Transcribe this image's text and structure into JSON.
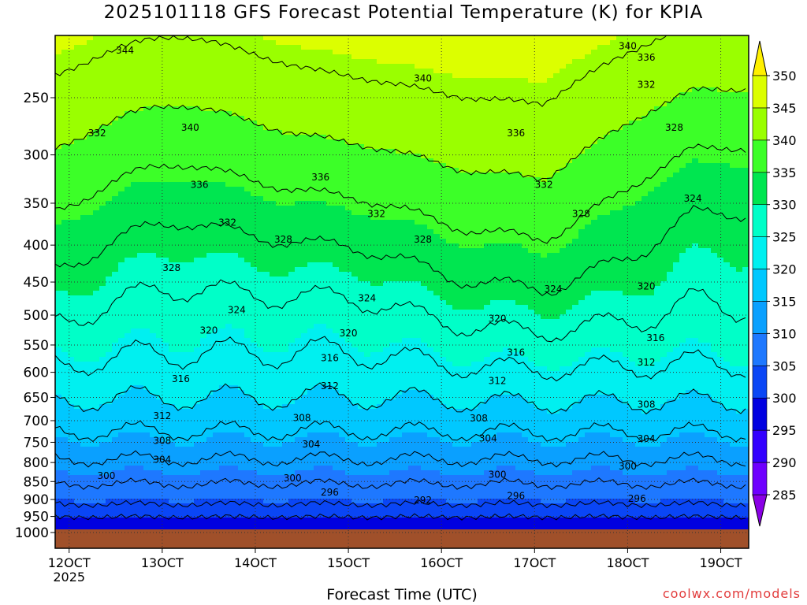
{
  "title": "2025101118 GFS Forecast Potential Temperature (K) for KPIA",
  "credit": "coolwx.com/models",
  "chart_data": {
    "type": "heatmap",
    "title": "2025101118 GFS Forecast Potential Temperature (K) for KPIA",
    "xlabel": "Forecast Time (UTC)",
    "ylabel": "",
    "x_ticks": [
      "12OCT",
      "13OCT",
      "14OCT",
      "15OCT",
      "16OCT",
      "17OCT",
      "18OCT",
      "19OCT"
    ],
    "x_tick_year": "2025",
    "x_range_days": [
      11.85,
      19.3
    ],
    "y_ticks": [
      250,
      300,
      350,
      400,
      450,
      500,
      550,
      600,
      650,
      700,
      750,
      800,
      850,
      900,
      950,
      1000
    ],
    "y_range_hpa": [
      200,
      1000
    ],
    "y_scale": "log-pressure",
    "grid": true,
    "colorbar": {
      "levels": [
        285,
        290,
        295,
        300,
        305,
        310,
        315,
        320,
        325,
        330,
        335,
        340,
        345,
        350
      ],
      "colors": [
        "#8a00e6",
        "#6e00ff",
        "#3300ff",
        "#0000e0",
        "#0a46f5",
        "#1e78ff",
        "#0aa0ff",
        "#00c8ff",
        "#00f0f0",
        "#00ffc8",
        "#00e650",
        "#3cff28",
        "#9aff00",
        "#dcff00",
        "#fff000"
      ],
      "extend": "both"
    },
    "contour_labels": [
      {
        "value": 344,
        "x": 12.6,
        "p": 215
      },
      {
        "value": 340,
        "x": 13.3,
        "p": 275
      },
      {
        "value": 340,
        "x": 15.8,
        "p": 235
      },
      {
        "value": 340,
        "x": 18.0,
        "p": 212
      },
      {
        "value": 336,
        "x": 18.2,
        "p": 220
      },
      {
        "value": 336,
        "x": 13.4,
        "p": 330
      },
      {
        "value": 336,
        "x": 14.7,
        "p": 322
      },
      {
        "value": 336,
        "x": 16.8,
        "p": 280
      },
      {
        "value": 332,
        "x": 12.3,
        "p": 280
      },
      {
        "value": 332,
        "x": 13.7,
        "p": 372
      },
      {
        "value": 332,
        "x": 15.3,
        "p": 362
      },
      {
        "value": 332,
        "x": 17.1,
        "p": 330
      },
      {
        "value": 332,
        "x": 18.2,
        "p": 240
      },
      {
        "value": 328,
        "x": 13.1,
        "p": 430
      },
      {
        "value": 328,
        "x": 14.3,
        "p": 393
      },
      {
        "value": 328,
        "x": 15.8,
        "p": 393
      },
      {
        "value": 328,
        "x": 17.5,
        "p": 362
      },
      {
        "value": 328,
        "x": 18.5,
        "p": 275
      },
      {
        "value": 324,
        "x": 13.8,
        "p": 492
      },
      {
        "value": 324,
        "x": 15.2,
        "p": 474
      },
      {
        "value": 324,
        "x": 17.2,
        "p": 460
      },
      {
        "value": 324,
        "x": 18.7,
        "p": 345
      },
      {
        "value": 320,
        "x": 13.5,
        "p": 525
      },
      {
        "value": 320,
        "x": 15.0,
        "p": 530
      },
      {
        "value": 320,
        "x": 16.6,
        "p": 506
      },
      {
        "value": 320,
        "x": 18.2,
        "p": 456
      },
      {
        "value": 316,
        "x": 13.2,
        "p": 613
      },
      {
        "value": 316,
        "x": 14.8,
        "p": 573
      },
      {
        "value": 316,
        "x": 16.8,
        "p": 563
      },
      {
        "value": 316,
        "x": 18.3,
        "p": 538
      },
      {
        "value": 312,
        "x": 13.0,
        "p": 690
      },
      {
        "value": 312,
        "x": 14.8,
        "p": 627
      },
      {
        "value": 312,
        "x": 16.6,
        "p": 617
      },
      {
        "value": 312,
        "x": 18.2,
        "p": 581
      },
      {
        "value": 308,
        "x": 13.0,
        "p": 746
      },
      {
        "value": 308,
        "x": 14.5,
        "p": 694
      },
      {
        "value": 308,
        "x": 16.4,
        "p": 695
      },
      {
        "value": 308,
        "x": 18.2,
        "p": 665
      },
      {
        "value": 304,
        "x": 13.0,
        "p": 793
      },
      {
        "value": 304,
        "x": 14.6,
        "p": 755
      },
      {
        "value": 304,
        "x": 16.5,
        "p": 741
      },
      {
        "value": 304,
        "x": 18.2,
        "p": 742
      },
      {
        "value": 300,
        "x": 12.4,
        "p": 835
      },
      {
        "value": 300,
        "x": 14.4,
        "p": 841
      },
      {
        "value": 300,
        "x": 16.6,
        "p": 831
      },
      {
        "value": 300,
        "x": 18.0,
        "p": 810
      },
      {
        "value": 296,
        "x": 14.8,
        "p": 880
      },
      {
        "value": 296,
        "x": 16.8,
        "p": 890
      },
      {
        "value": 296,
        "x": 18.1,
        "p": 898
      },
      {
        "value": 292,
        "x": 15.8,
        "p": 902
      }
    ]
  }
}
